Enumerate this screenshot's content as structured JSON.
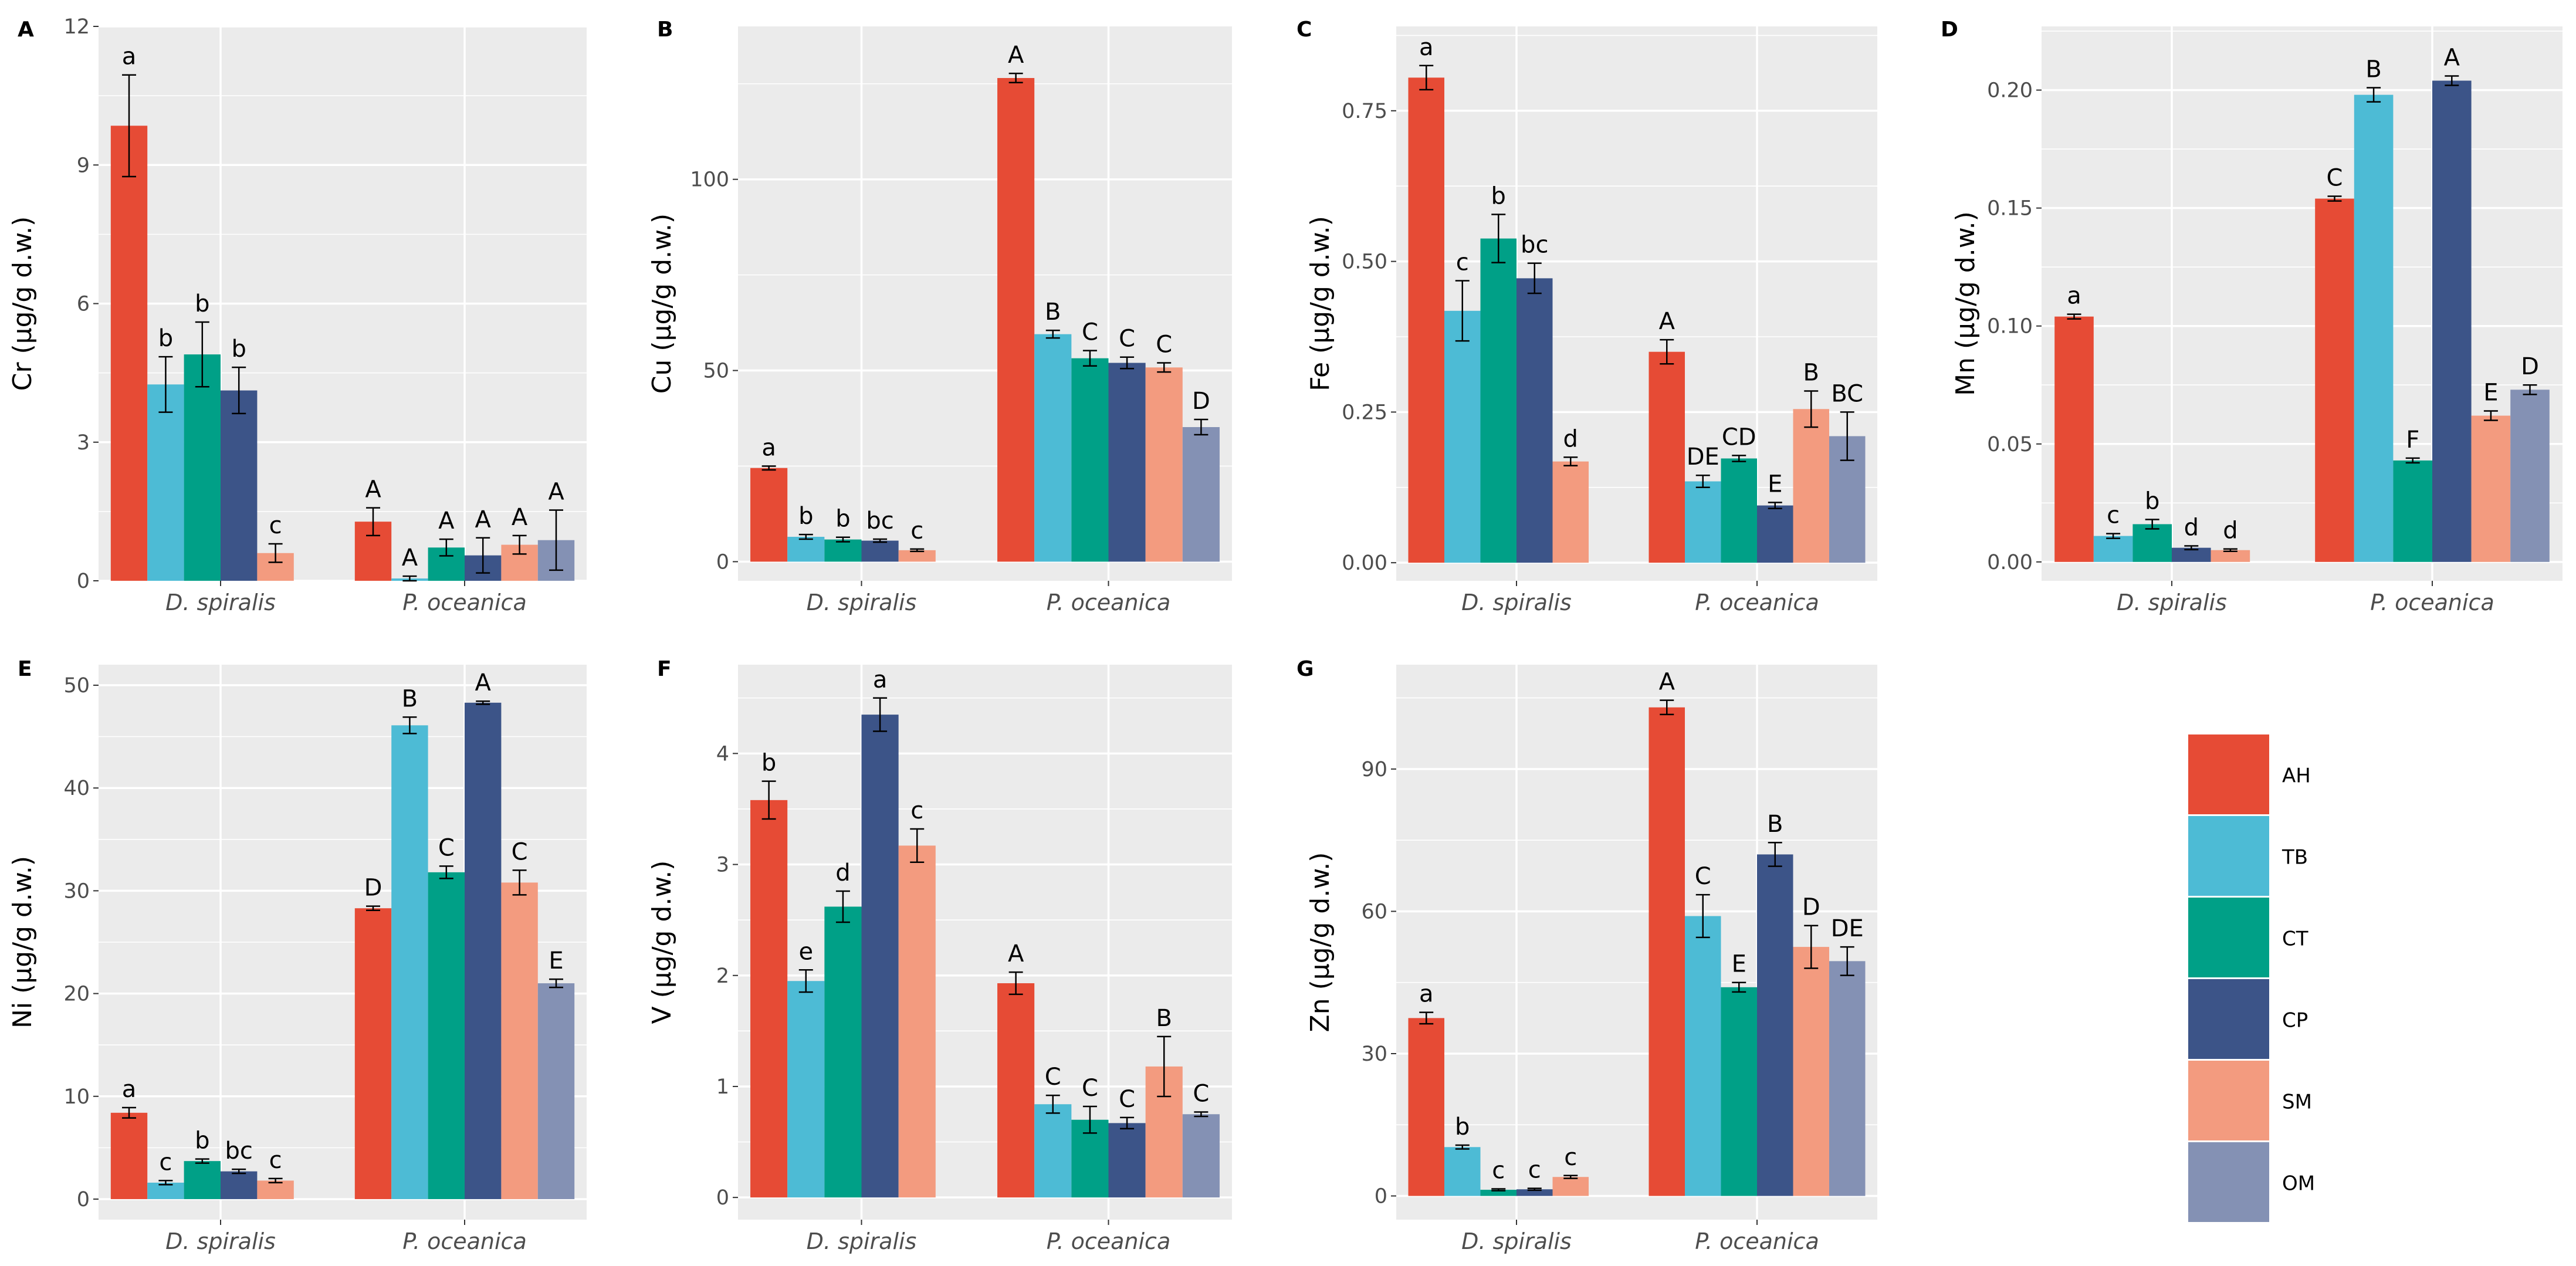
{
  "groups": [
    "TB",
    "AH",
    "CT",
    "CP",
    "SM",
    "OM"
  ],
  "group_order": [
    "AH",
    "TB",
    "CT",
    "CP",
    "SM",
    "OM"
  ],
  "colors": {
    "AH": "#E64B35",
    "TB": "#4DBBD5",
    "CT": "#00A087",
    "CP": "#3C5488",
    "SM": "#F39B7F",
    "OM": "#8491B4"
  },
  "legend": {
    "items": [
      "AH",
      "TB",
      "CT",
      "CP",
      "SM",
      "OM"
    ]
  },
  "chart_data": [
    {
      "letter": "A",
      "type": "bar",
      "ylabel": "Cr (µg/g d.w.)",
      "ylim": [
        0,
        12
      ],
      "yticks": [
        0,
        3,
        6,
        9,
        12
      ],
      "ytick_labels": [
        "0",
        "3",
        "6",
        "9",
        "12"
      ],
      "categories": [
        "D. spiralis",
        "P. oceanica"
      ],
      "series": [
        {
          "name": "AH",
          "values": [
            9.85,
            1.28
          ],
          "errors": [
            1.1,
            0.3
          ],
          "labels": [
            "a",
            "A"
          ]
        },
        {
          "name": "TB",
          "values": [
            4.25,
            0.05
          ],
          "errors": [
            0.6,
            0.05
          ],
          "labels": [
            "b",
            "A"
          ]
        },
        {
          "name": "CT",
          "values": [
            4.9,
            0.72
          ],
          "errors": [
            0.7,
            0.18
          ],
          "labels": [
            "b",
            "A"
          ]
        },
        {
          "name": "CP",
          "values": [
            4.12,
            0.55
          ],
          "errors": [
            0.5,
            0.38
          ],
          "labels": [
            "b",
            "A"
          ]
        },
        {
          "name": "SM",
          "values": [
            0.6,
            0.78
          ],
          "errors": [
            0.2,
            0.2
          ],
          "labels": [
            "c",
            "A"
          ]
        },
        {
          "name": "OM",
          "values": [
            null,
            0.88
          ],
          "errors": [
            null,
            0.65
          ],
          "labels": [
            null,
            "A"
          ]
        }
      ]
    },
    {
      "letter": "B",
      "type": "bar",
      "ylabel": "Cu (µg/g d.w.)",
      "ylim": [
        -5,
        140
      ],
      "yticks": [
        0,
        50,
        100
      ],
      "ytick_labels": [
        "0",
        "50",
        "100"
      ],
      "categories": [
        "D. spiralis",
        "P. oceanica"
      ],
      "series": [
        {
          "name": "AH",
          "values": [
            24.5,
            126.5
          ],
          "errors": [
            0.5,
            1.2
          ],
          "labels": [
            "a",
            "A"
          ]
        },
        {
          "name": "TB",
          "values": [
            6.5,
            59.5
          ],
          "errors": [
            0.6,
            1.0
          ],
          "labels": [
            "b",
            "B"
          ]
        },
        {
          "name": "CT",
          "values": [
            5.8,
            53.2
          ],
          "errors": [
            0.6,
            2.0
          ],
          "labels": [
            "b",
            "C"
          ]
        },
        {
          "name": "CP",
          "values": [
            5.5,
            52.0
          ],
          "errors": [
            0.4,
            1.5
          ],
          "labels": [
            "bc",
            "C"
          ]
        },
        {
          "name": "SM",
          "values": [
            3.0,
            50.8
          ],
          "errors": [
            0.3,
            1.2
          ],
          "labels": [
            "c",
            "C"
          ]
        },
        {
          "name": "OM",
          "values": [
            null,
            35.2
          ],
          "errors": [
            null,
            2.0
          ],
          "labels": [
            null,
            "D"
          ]
        }
      ]
    },
    {
      "letter": "C",
      "type": "bar",
      "ylabel": "Fe (µg/g d.w.)",
      "ylim": [
        -0.03,
        0.89
      ],
      "yticks": [
        0,
        0.25,
        0.5,
        0.75
      ],
      "ytick_labels": [
        "0.00",
        "0.25",
        "0.50",
        "0.75"
      ],
      "categories": [
        "D. spiralis",
        "P. oceanica"
      ],
      "series": [
        {
          "name": "AH",
          "values": [
            0.805,
            0.35
          ],
          "errors": [
            0.02,
            0.02
          ],
          "labels": [
            "a",
            "A"
          ]
        },
        {
          "name": "TB",
          "values": [
            0.418,
            0.135
          ],
          "errors": [
            0.05,
            0.01
          ],
          "labels": [
            "c",
            "DE"
          ]
        },
        {
          "name": "CT",
          "values": [
            0.538,
            0.173
          ],
          "errors": [
            0.04,
            0.005
          ],
          "labels": [
            "b",
            "CD"
          ]
        },
        {
          "name": "CP",
          "values": [
            0.472,
            0.095
          ],
          "errors": [
            0.025,
            0.005
          ],
          "labels": [
            "bc",
            "E"
          ]
        },
        {
          "name": "SM",
          "values": [
            0.168,
            0.255
          ],
          "errors": [
            0.007,
            0.03
          ],
          "labels": [
            "d",
            "B"
          ]
        },
        {
          "name": "OM",
          "values": [
            null,
            0.21
          ],
          "errors": [
            null,
            0.04
          ],
          "labels": [
            null,
            "BC"
          ]
        }
      ]
    },
    {
      "letter": "D",
      "type": "bar",
      "ylabel": "Mn (µg/g d.w.)",
      "ylim": [
        -0.008,
        0.227
      ],
      "yticks": [
        0,
        0.05,
        0.1,
        0.15,
        0.2
      ],
      "ytick_labels": [
        "0.00",
        "0.05",
        "0.10",
        "0.15",
        "0.20"
      ],
      "categories": [
        "D. spiralis",
        "P. oceanica"
      ],
      "series": [
        {
          "name": "AH",
          "values": [
            0.104,
            0.154
          ],
          "errors": [
            0.001,
            0.001
          ],
          "labels": [
            "a",
            "C"
          ]
        },
        {
          "name": "TB",
          "values": [
            0.011,
            0.198
          ],
          "errors": [
            0.001,
            0.003
          ],
          "labels": [
            "c",
            "B"
          ]
        },
        {
          "name": "CT",
          "values": [
            0.016,
            0.043
          ],
          "errors": [
            0.002,
            0.001
          ],
          "labels": [
            "b",
            "F"
          ]
        },
        {
          "name": "CP",
          "values": [
            0.006,
            0.204
          ],
          "errors": [
            0.0008,
            0.002
          ],
          "labels": [
            "d",
            "A"
          ]
        },
        {
          "name": "SM",
          "values": [
            0.005,
            0.062
          ],
          "errors": [
            0.0005,
            0.002
          ],
          "labels": [
            "d",
            "E"
          ]
        },
        {
          "name": "OM",
          "values": [
            null,
            0.073
          ],
          "errors": [
            null,
            0.002
          ],
          "labels": [
            null,
            "D"
          ]
        }
      ]
    },
    {
      "letter": "E",
      "type": "bar",
      "ylabel": "Ni (µg/g d.w.)",
      "ylim": [
        -2,
        52
      ],
      "yticks": [
        0,
        10,
        20,
        30,
        40,
        50
      ],
      "ytick_labels": [
        "0",
        "10",
        "20",
        "30",
        "40",
        "50"
      ],
      "categories": [
        "D. spiralis",
        "P. oceanica"
      ],
      "series": [
        {
          "name": "AH",
          "values": [
            8.4,
            28.3
          ],
          "errors": [
            0.5,
            0.2
          ],
          "labels": [
            "a",
            "D"
          ]
        },
        {
          "name": "TB",
          "values": [
            1.6,
            46.1
          ],
          "errors": [
            0.2,
            0.8
          ],
          "labels": [
            "c",
            "B"
          ]
        },
        {
          "name": "CT",
          "values": [
            3.7,
            31.8
          ],
          "errors": [
            0.2,
            0.6
          ],
          "labels": [
            "b",
            "C"
          ]
        },
        {
          "name": "CP",
          "values": [
            2.7,
            48.3
          ],
          "errors": [
            0.2,
            0.15
          ],
          "labels": [
            "bc",
            "A"
          ]
        },
        {
          "name": "SM",
          "values": [
            1.8,
            30.8
          ],
          "errors": [
            0.2,
            1.2
          ],
          "labels": [
            "c",
            "C"
          ]
        },
        {
          "name": "OM",
          "values": [
            null,
            21.0
          ],
          "errors": [
            null,
            0.4
          ],
          "labels": [
            null,
            "E"
          ]
        }
      ]
    },
    {
      "letter": "F",
      "type": "bar",
      "ylabel": "V (µg/g d.w.)",
      "ylim": [
        -0.2,
        4.8
      ],
      "yticks": [
        0,
        1,
        2,
        3,
        4
      ],
      "ytick_labels": [
        "0",
        "1",
        "2",
        "3",
        "4"
      ],
      "categories": [
        "D. spiralis",
        "P. oceanica"
      ],
      "series": [
        {
          "name": "AH",
          "values": [
            3.58,
            1.93
          ],
          "errors": [
            0.17,
            0.1
          ],
          "labels": [
            "b",
            "A"
          ]
        },
        {
          "name": "TB",
          "values": [
            1.95,
            0.84
          ],
          "errors": [
            0.1,
            0.08
          ],
          "labels": [
            "e",
            "C"
          ]
        },
        {
          "name": "CT",
          "values": [
            2.62,
            0.7
          ],
          "errors": [
            0.14,
            0.12
          ],
          "labels": [
            "d",
            "C"
          ]
        },
        {
          "name": "CP",
          "values": [
            4.35,
            0.67
          ],
          "errors": [
            0.15,
            0.05
          ],
          "labels": [
            "a",
            "C"
          ]
        },
        {
          "name": "SM",
          "values": [
            3.17,
            1.18
          ],
          "errors": [
            0.15,
            0.27
          ],
          "labels": [
            "c",
            "B"
          ]
        },
        {
          "name": "OM",
          "values": [
            null,
            0.75
          ],
          "errors": [
            null,
            0.02
          ],
          "labels": [
            null,
            "C"
          ]
        }
      ]
    },
    {
      "letter": "G",
      "type": "bar",
      "ylabel": "Zn (µg/g d.w.)",
      "ylim": [
        -5,
        112
      ],
      "yticks": [
        0,
        30,
        60,
        90
      ],
      "ytick_labels": [
        "0",
        "30",
        "60",
        "90"
      ],
      "categories": [
        "D. spiralis",
        "P. oceanica"
      ],
      "series": [
        {
          "name": "AH",
          "values": [
            37.5,
            103.0
          ],
          "errors": [
            1.2,
            1.5
          ],
          "labels": [
            "a",
            "A"
          ]
        },
        {
          "name": "TB",
          "values": [
            10.3,
            59.0
          ],
          "errors": [
            0.4,
            4.5
          ],
          "labels": [
            "b",
            "C"
          ]
        },
        {
          "name": "CT",
          "values": [
            1.3,
            44.0
          ],
          "errors": [
            0.2,
            1.0
          ],
          "labels": [
            "c",
            "E"
          ]
        },
        {
          "name": "CP",
          "values": [
            1.4,
            72.0
          ],
          "errors": [
            0.2,
            2.5
          ],
          "labels": [
            "c",
            "B"
          ]
        },
        {
          "name": "SM",
          "values": [
            4.0,
            52.5
          ],
          "errors": [
            0.3,
            4.5
          ],
          "labels": [
            "c",
            "D"
          ]
        },
        {
          "name": "OM",
          "values": [
            null,
            49.5
          ],
          "errors": [
            null,
            3.0
          ],
          "labels": [
            null,
            "DE"
          ]
        }
      ]
    }
  ]
}
